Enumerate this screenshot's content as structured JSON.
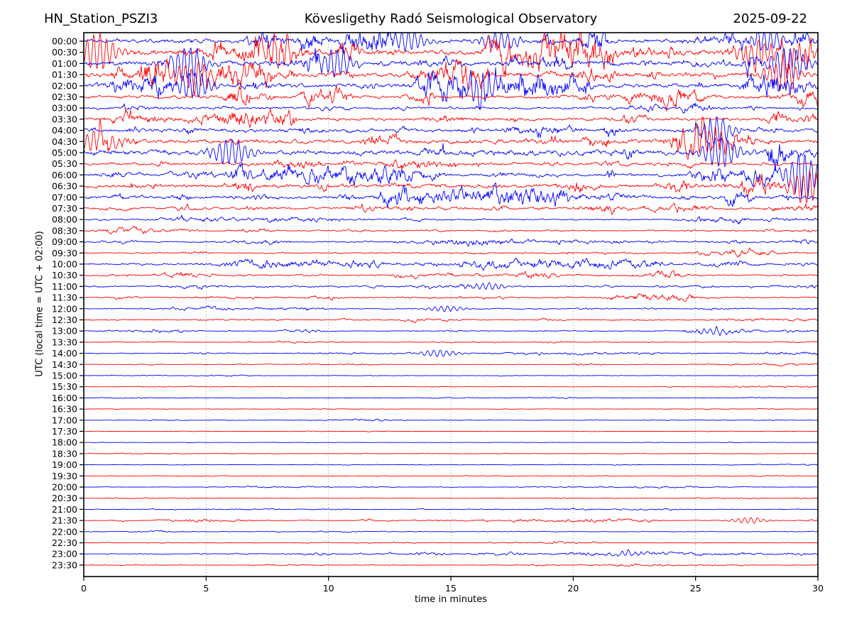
{
  "header": {
    "station": "HN_Station_PSZI3",
    "observatory": "Kövesligethy Radó Seismological Observatory",
    "date": "2025-09-22"
  },
  "chart_data": {
    "type": "line",
    "subtype": "helicorder-seismogram",
    "title": "Kövesligethy Radó Seismological Observatory",
    "station": "HN_Station_PSZI3",
    "date": "2025-09-22",
    "xlabel": "time in minutes",
    "ylabel": "UTC (local time = UTC + 02:00)",
    "xlim": [
      0,
      30
    ],
    "x_ticks": [
      0,
      5,
      10,
      15,
      20,
      25,
      30
    ],
    "grid_minutes": [
      5,
      10,
      15,
      20,
      25
    ],
    "row_interval_minutes": 30,
    "grid_on": true,
    "colors": {
      "hour_trace": "#0000ff",
      "half_hour_trace": "#ff0000",
      "grid": "#888888",
      "frame": "#000000"
    },
    "rows": [
      {
        "t": "00:00",
        "color": "blue",
        "a": 0.5,
        "b": 0.75,
        "ev": [
          {
            "m": 13.2,
            "a": 0.9
          },
          {
            "m": 17.0,
            "a": 0.8
          },
          {
            "m": 28.0,
            "a": 0.9
          }
        ]
      },
      {
        "t": "00:30",
        "color": "red",
        "a": 0.7,
        "b": 0.8,
        "ev": [
          {
            "m": 0.6,
            "a": 1.6
          },
          {
            "m": 8.0,
            "a": 1.0
          },
          {
            "m": 27.5,
            "a": 1.2
          }
        ]
      },
      {
        "t": "01:00",
        "color": "blue",
        "a": 0.7,
        "b": 0.8,
        "ev": [
          {
            "m": 4.3,
            "a": 1.4
          },
          {
            "m": 10.3,
            "a": 1.2
          },
          {
            "m": 28.8,
            "a": 1.5
          }
        ]
      },
      {
        "t": "01:30",
        "color": "red",
        "a": 0.55,
        "b": 0.75,
        "ev": [
          {
            "m": 4.6,
            "a": 1.0
          },
          {
            "m": 28.5,
            "a": 1.2
          }
        ]
      },
      {
        "t": "02:00",
        "color": "blue",
        "a": 0.55,
        "b": 0.75,
        "ev": [
          {
            "m": 4.5,
            "a": 1.1
          },
          {
            "m": 16.5,
            "a": 1.3
          }
        ]
      },
      {
        "t": "02:30",
        "color": "red",
        "a": 0.38,
        "b": 0.6,
        "ev": []
      },
      {
        "t": "03:00",
        "color": "blue",
        "a": 0.32,
        "b": 0.55,
        "ev": []
      },
      {
        "t": "03:30",
        "color": "red",
        "a": 0.36,
        "b": 0.55,
        "ev": []
      },
      {
        "t": "04:00",
        "color": "blue",
        "a": 0.45,
        "b": 0.65,
        "ev": [
          {
            "m": 25.8,
            "a": 1.2
          }
        ]
      },
      {
        "t": "04:30",
        "color": "red",
        "a": 0.55,
        "b": 0.7,
        "ev": [
          {
            "m": 0.6,
            "a": 1.1
          },
          {
            "m": 25.5,
            "a": 1.0
          }
        ]
      },
      {
        "t": "05:00",
        "color": "blue",
        "a": 0.65,
        "b": 0.75,
        "ev": [
          {
            "m": 6.0,
            "a": 1.2
          },
          {
            "m": 26.0,
            "a": 1.3
          }
        ]
      },
      {
        "t": "05:30",
        "color": "red",
        "a": 0.34,
        "b": 0.55,
        "ev": []
      },
      {
        "t": "06:00",
        "color": "blue",
        "a": 0.34,
        "b": 0.6,
        "ev": [
          {
            "m": 29.4,
            "a": 1.9
          }
        ]
      },
      {
        "t": "06:30",
        "color": "red",
        "a": 0.5,
        "b": 0.7,
        "ev": [
          {
            "m": 29.6,
            "a": 1.5
          }
        ]
      },
      {
        "t": "07:00",
        "color": "blue",
        "a": 0.38,
        "b": 0.6,
        "ev": []
      },
      {
        "t": "07:30",
        "color": "red",
        "a": 0.3,
        "b": 0.5,
        "ev": []
      },
      {
        "t": "08:00",
        "color": "blue",
        "a": 0.16,
        "b": 0.3,
        "ev": []
      },
      {
        "t": "08:30",
        "color": "red",
        "a": 0.13,
        "b": 0.3,
        "ev": []
      },
      {
        "t": "09:00",
        "color": "blue",
        "a": 0.15,
        "b": 0.3,
        "ev": []
      },
      {
        "t": "09:30",
        "color": "red",
        "a": 0.15,
        "b": 0.3,
        "ev": []
      },
      {
        "t": "10:00",
        "color": "blue",
        "a": 0.18,
        "b": 0.35,
        "ev": []
      },
      {
        "t": "10:30",
        "color": "red",
        "a": 0.16,
        "b": 0.3,
        "ev": []
      },
      {
        "t": "11:00",
        "color": "blue",
        "a": 0.18,
        "b": 0.35,
        "ev": [
          {
            "m": 16.5,
            "a": 0.3
          }
        ]
      },
      {
        "t": "11:30",
        "color": "red",
        "a": 0.13,
        "b": 0.3,
        "ev": []
      },
      {
        "t": "12:00",
        "color": "blue",
        "a": 0.11,
        "b": 0.25,
        "ev": [
          {
            "m": 14.8,
            "a": 0.25
          }
        ]
      },
      {
        "t": "12:30",
        "color": "red",
        "a": 0.1,
        "b": 0.25,
        "ev": []
      },
      {
        "t": "13:00",
        "color": "blue",
        "a": 0.09,
        "b": 0.2,
        "ev": [
          {
            "m": 25.8,
            "a": 0.3
          }
        ]
      },
      {
        "t": "13:30",
        "color": "red",
        "a": 0.06,
        "b": 0.2,
        "ev": []
      },
      {
        "t": "14:00",
        "color": "blue",
        "a": 0.06,
        "b": 0.2,
        "ev": [
          {
            "m": 14.5,
            "a": 0.3
          }
        ]
      },
      {
        "t": "14:30",
        "color": "red",
        "a": 0.05,
        "b": 0.15,
        "ev": []
      },
      {
        "t": "15:00",
        "color": "blue",
        "a": 0.045,
        "b": 0.1,
        "ev": []
      },
      {
        "t": "15:30",
        "color": "red",
        "a": 0.035,
        "b": 0.1,
        "ev": []
      },
      {
        "t": "16:00",
        "color": "blue",
        "a": 0.03,
        "b": 0.1,
        "ev": []
      },
      {
        "t": "16:30",
        "color": "red",
        "a": 0.035,
        "b": 0.1,
        "ev": []
      },
      {
        "t": "17:00",
        "color": "blue",
        "a": 0.04,
        "b": 0.1,
        "ev": []
      },
      {
        "t": "17:30",
        "color": "red",
        "a": 0.03,
        "b": 0.1,
        "ev": []
      },
      {
        "t": "18:00",
        "color": "blue",
        "a": 0.03,
        "b": 0.1,
        "ev": []
      },
      {
        "t": "18:30",
        "color": "red",
        "a": 0.035,
        "b": 0.1,
        "ev": []
      },
      {
        "t": "19:00",
        "color": "blue",
        "a": 0.03,
        "b": 0.1,
        "ev": []
      },
      {
        "t": "19:30",
        "color": "red",
        "a": 0.03,
        "b": 0.1,
        "ev": []
      },
      {
        "t": "20:00",
        "color": "blue",
        "a": 0.035,
        "b": 0.1,
        "ev": []
      },
      {
        "t": "20:30",
        "color": "red",
        "a": 0.045,
        "b": 0.15,
        "ev": []
      },
      {
        "t": "21:00",
        "color": "blue",
        "a": 0.06,
        "b": 0.2,
        "ev": []
      },
      {
        "t": "21:30",
        "color": "red",
        "a": 0.07,
        "b": 0.25,
        "ev": [
          {
            "m": 27.2,
            "a": 0.25
          }
        ]
      },
      {
        "t": "22:00",
        "color": "blue",
        "a": 0.05,
        "b": 0.2,
        "ev": []
      },
      {
        "t": "22:30",
        "color": "red",
        "a": 0.05,
        "b": 0.2,
        "ev": []
      },
      {
        "t": "23:00",
        "color": "blue",
        "a": 0.07,
        "b": 0.25,
        "ev": [
          {
            "m": 22.2,
            "a": 0.2
          }
        ]
      },
      {
        "t": "23:30",
        "color": "red",
        "a": 0.05,
        "b": 0.2,
        "ev": []
      }
    ]
  }
}
